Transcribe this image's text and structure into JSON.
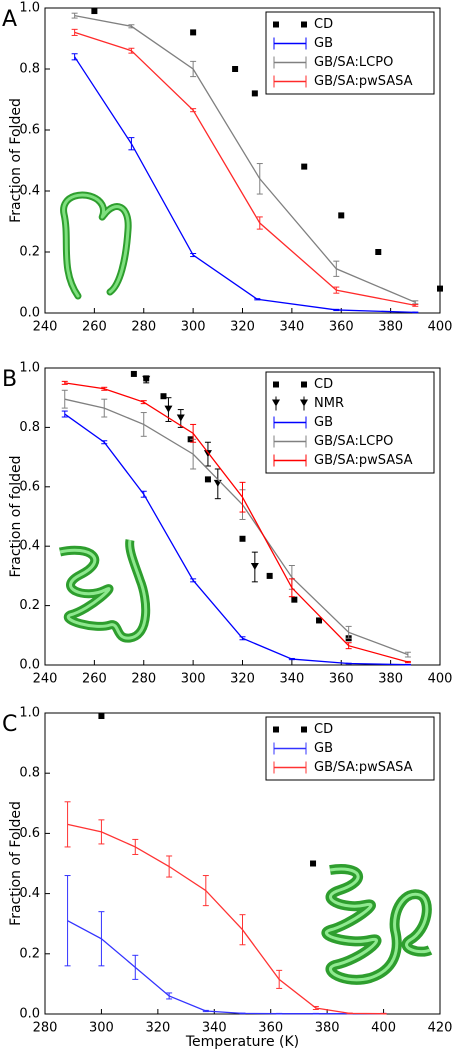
{
  "chart_data": [
    {
      "type": "line",
      "label": "A",
      "ylabel": "Fraction of Folded",
      "xlim": [
        240,
        400
      ],
      "xticks": [
        240,
        260,
        280,
        300,
        320,
        340,
        360,
        380,
        400
      ],
      "ylim": [
        0,
        1
      ],
      "yticks": [
        {
          "value": 0,
          "label": "0.0"
        },
        0.2,
        0.4,
        0.6,
        0.8,
        {
          "value": 1,
          "label": "1.0"
        }
      ],
      "legend": "upper right",
      "series": [
        {
          "name": "CD",
          "color": "#000000",
          "style": "square",
          "x": [
            260,
            300,
            317,
            325,
            345,
            360,
            375,
            400
          ],
          "values": [
            0.99,
            0.92,
            0.8,
            0.72,
            0.48,
            0.32,
            0.2,
            0.08
          ]
        },
        {
          "name": "GB",
          "color": "#0000ff",
          "style": "line",
          "x": [
            252,
            275,
            300,
            326,
            358,
            390
          ],
          "values": [
            0.84,
            0.555,
            0.19,
            0.045,
            0.01,
            0.002
          ],
          "errors": [
            0.01,
            0.02,
            0.005,
            0.002,
            0.002,
            0.001
          ]
        },
        {
          "name": "GB/SA:LCPO",
          "color": "#808080",
          "style": "line",
          "x": [
            252,
            275,
            300,
            327,
            358,
            390
          ],
          "values": [
            0.975,
            0.94,
            0.8,
            0.44,
            0.145,
            0.035
          ],
          "errors": [
            0.008,
            0.005,
            0.025,
            0.05,
            0.025,
            0.005
          ]
        },
        {
          "name": "GB/SA:pwSASA",
          "color": "#ff2a2a",
          "style": "line",
          "x": [
            252,
            275,
            300,
            327,
            358,
            390
          ],
          "values": [
            0.92,
            0.86,
            0.665,
            0.295,
            0.075,
            0.025
          ],
          "errors": [
            0.01,
            0.008,
            0.005,
            0.02,
            0.01,
            0.003
          ]
        }
      ]
    },
    {
      "type": "line",
      "label": "B",
      "ylabel": "Fraction of folded",
      "xlim": [
        240,
        400
      ],
      "xticks": [
        240,
        260,
        280,
        300,
        320,
        340,
        360,
        380,
        400
      ],
      "ylim": [
        0,
        1
      ],
      "yticks": [
        {
          "value": 0,
          "label": "0.0"
        },
        0.2,
        0.4,
        0.6,
        0.8,
        {
          "value": 1,
          "label": "1.0"
        }
      ],
      "legend": "upper right",
      "series": [
        {
          "name": "CD",
          "color": "#000000",
          "style": "square",
          "x": [
            276,
            281,
            288,
            299,
            306,
            320,
            331,
            341,
            351,
            363
          ],
          "values": [
            0.98,
            0.965,
            0.905,
            0.76,
            0.625,
            0.425,
            0.3,
            0.22,
            0.15,
            0.09
          ]
        },
        {
          "name": "NMR",
          "color": "#000000",
          "style": "triangle",
          "x": [
            281,
            290,
            295,
            306,
            310,
            325
          ],
          "values": [
            0.96,
            0.86,
            0.83,
            0.71,
            0.61,
            0.33
          ],
          "errors": [
            0.01,
            0.04,
            0.03,
            0.04,
            0.05,
            0.05
          ]
        },
        {
          "name": "GB",
          "color": "#0000ff",
          "style": "line",
          "x": [
            248,
            264,
            280,
            300,
            320,
            340,
            363,
            387
          ],
          "values": [
            0.845,
            0.75,
            0.575,
            0.285,
            0.09,
            0.02,
            0.005,
            0.001
          ],
          "errors": [
            0.01,
            0.005,
            0.01,
            0.005,
            0.005,
            0.002,
            0.001,
            0.001
          ]
        },
        {
          "name": "GB/SA:LCPO",
          "color": "#808080",
          "style": "line",
          "x": [
            248,
            264,
            280,
            300,
            320,
            340,
            363,
            387
          ],
          "values": [
            0.895,
            0.865,
            0.81,
            0.71,
            0.54,
            0.295,
            0.11,
            0.035
          ],
          "errors": [
            0.03,
            0.03,
            0.04,
            0.05,
            0.05,
            0.04,
            0.02,
            0.008
          ]
        },
        {
          "name": "GB/SA:pwSASA",
          "color": "#ff0000",
          "style": "line",
          "x": [
            248,
            264,
            280,
            300,
            320,
            340,
            363,
            387
          ],
          "values": [
            0.95,
            0.93,
            0.885,
            0.78,
            0.565,
            0.26,
            0.065,
            0.01
          ],
          "errors": [
            0.005,
            0.005,
            0.005,
            0.03,
            0.05,
            0.03,
            0.01,
            0.002
          ]
        }
      ]
    },
    {
      "type": "line",
      "label": "C",
      "ylabel": "Fraction of Folded",
      "xlabel": "Temperature (K)",
      "xlim": [
        280,
        420
      ],
      "xticks": [
        280,
        300,
        320,
        340,
        360,
        380,
        400,
        420
      ],
      "ylim": [
        0,
        1
      ],
      "yticks": [
        {
          "value": 0,
          "label": "0.0"
        },
        0.2,
        0.4,
        0.6,
        0.8,
        {
          "value": 1,
          "label": "1.0"
        }
      ],
      "legend": "upper right",
      "series": [
        {
          "name": "CD",
          "color": "#000000",
          "style": "square",
          "x": [
            300,
            375
          ],
          "values": [
            0.99,
            0.5
          ]
        },
        {
          "name": "GB",
          "color": "#3333ff",
          "style": "line",
          "x": [
            288,
            300,
            312,
            324,
            337,
            350,
            363,
            376,
            388,
            400
          ],
          "values": [
            0.31,
            0.25,
            0.155,
            0.06,
            0.01,
            0.002,
            0.001,
            0.001,
            0.001,
            0.001
          ],
          "errors": [
            0.15,
            0.09,
            0.04,
            0.01,
            0.002,
            0.001,
            0.001,
            0.001,
            0.001,
            0.001
          ]
        },
        {
          "name": "GB/SA:pwSASA",
          "color": "#ff3333",
          "style": "line",
          "x": [
            288,
            300,
            312,
            324,
            337,
            350,
            363,
            376,
            388,
            400
          ],
          "values": [
            0.63,
            0.605,
            0.555,
            0.49,
            0.41,
            0.28,
            0.115,
            0.02,
            0.002,
            0.001
          ],
          "errors": [
            0.075,
            0.04,
            0.025,
            0.035,
            0.05,
            0.05,
            0.03,
            0.005,
            0.001,
            0.001
          ]
        }
      ]
    }
  ]
}
